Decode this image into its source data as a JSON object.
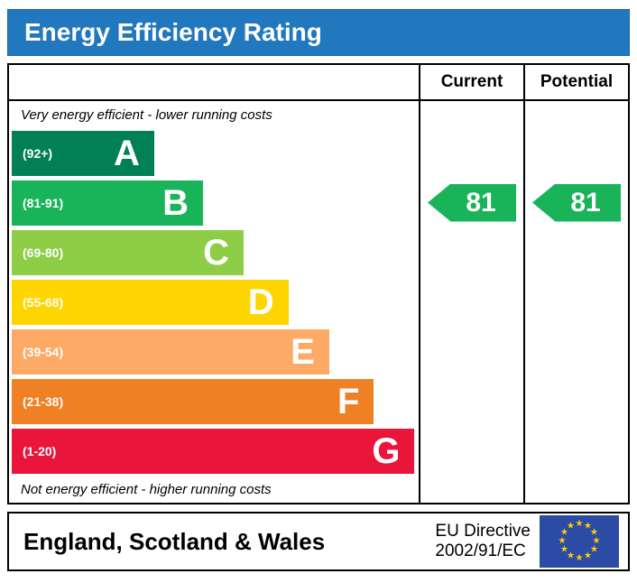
{
  "title": "Energy Efficiency Rating",
  "header": {
    "current": "Current",
    "potential": "Potential"
  },
  "notes": {
    "top": "Very energy efficient - lower running costs",
    "bottom": "Not energy efficient - higher running costs"
  },
  "chart_data": {
    "type": "banded-rating",
    "title": "Energy Efficiency Rating",
    "bands": [
      {
        "letter": "A",
        "range": "(92+)",
        "color": "#008054",
        "width_pct": 35
      },
      {
        "letter": "B",
        "range": "(81-91)",
        "color": "#19b459",
        "width_pct": 47
      },
      {
        "letter": "C",
        "range": "(69-80)",
        "color": "#8dce46",
        "width_pct": 57
      },
      {
        "letter": "D",
        "range": "(55-68)",
        "color": "#ffd500",
        "width_pct": 68
      },
      {
        "letter": "E",
        "range": "(39-54)",
        "color": "#fcaa65",
        "width_pct": 78
      },
      {
        "letter": "F",
        "range": "(21-38)",
        "color": "#ef8023",
        "width_pct": 89
      },
      {
        "letter": "G",
        "range": "(1-20)",
        "color": "#e9153b",
        "width_pct": 99
      }
    ],
    "current": {
      "value": 81,
      "band_index": 1,
      "color": "#19b459"
    },
    "potential": {
      "value": 81,
      "band_index": 1,
      "color": "#19b459"
    }
  },
  "footer": {
    "region": "England, Scotland & Wales",
    "directive_line1": "EU Directive",
    "directive_line2": "2002/91/EC"
  },
  "colors": {
    "title_bar": "#2178be",
    "flag_bg": "#2b4ba5",
    "star": "#ffcc00"
  }
}
